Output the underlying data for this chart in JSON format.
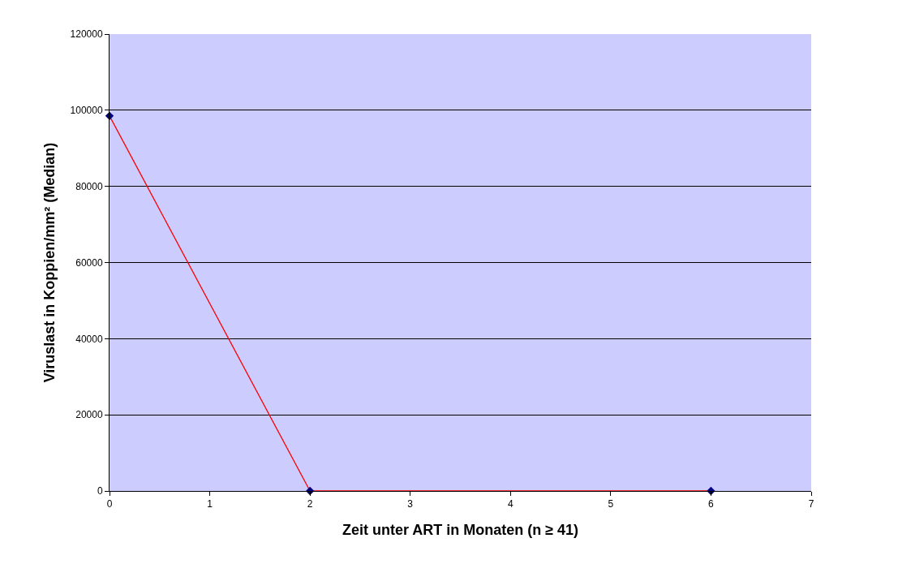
{
  "chart_data": {
    "type": "line",
    "xlabel": "Zeit unter ART in Monaten (n ≥ 41)",
    "ylabel": "Viruslast in Koppien/mm² (Median)",
    "x": [
      0,
      2,
      6
    ],
    "series": [
      {
        "color": "#ff0000",
        "colors": [
          "#000080",
          "#000080",
          "#000080"
        ],
        "values": [
          98500,
          0,
          0
        ]
      }
    ],
    "xlim": [
      0,
      7
    ],
    "xticks": [
      0,
      1,
      2,
      3,
      4,
      5,
      6,
      7
    ],
    "ylim": [
      0,
      120000
    ],
    "yticks": [
      0,
      20000,
      40000,
      60000,
      80000,
      100000,
      120000
    ],
    "grid": "y",
    "marker": "diamond",
    "line_style": "solid"
  }
}
